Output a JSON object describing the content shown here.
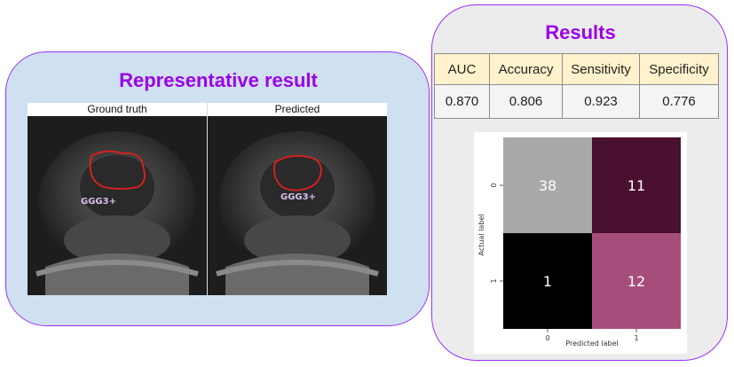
{
  "left": {
    "title": "Representative result",
    "images": [
      {
        "label": "Ground truth",
        "annotation": "GGG3+"
      },
      {
        "label": "Predicted",
        "annotation": "GGG3+"
      }
    ]
  },
  "right": {
    "title": "Results",
    "metrics": {
      "headers": [
        "AUC",
        "Accuracy",
        "Sensitivity",
        "Specificity"
      ],
      "values": [
        "0.870",
        "0.806",
        "0.923",
        "0.776"
      ]
    }
  },
  "chart_data": {
    "type": "heatmap",
    "title": "",
    "xlabel": "Predicted label",
    "ylabel": "Actual label",
    "x_categories": [
      "0",
      "1"
    ],
    "y_categories": [
      "0",
      "1"
    ],
    "values": [
      [
        38,
        11
      ],
      [
        1,
        12
      ]
    ],
    "cell_colors": [
      [
        "#a9a9a9",
        "#4a1030"
      ],
      [
        "#000000",
        "#a64d7c"
      ]
    ]
  },
  "colors": {
    "panel_border": "#9b30ff",
    "title": "#9b00e8",
    "left_bg": "#cfe0f0",
    "right_bg": "#ececec",
    "contour": "#e02020",
    "annotation": "#d8c0ee"
  }
}
